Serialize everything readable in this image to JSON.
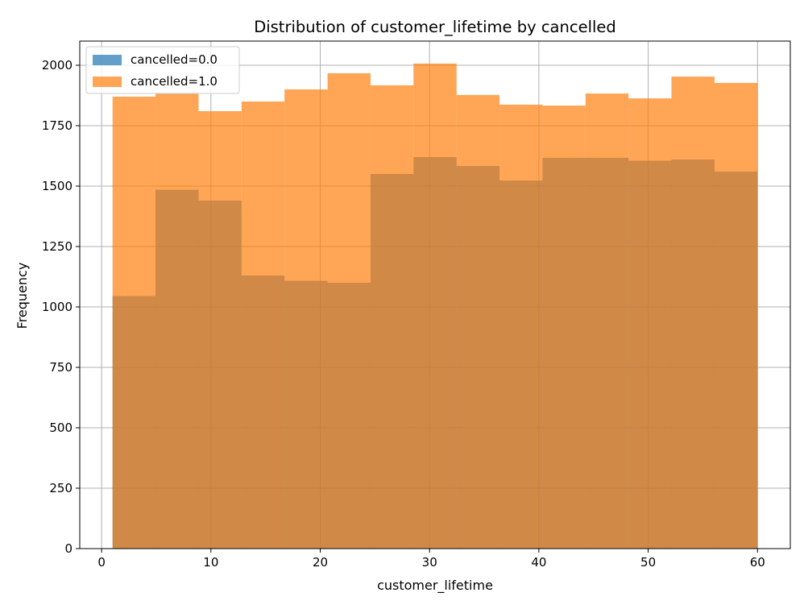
{
  "chart_data": {
    "type": "bar",
    "title": "Distribution of customer_lifetime by cancelled",
    "xlabel": "customer_lifetime",
    "ylabel": "Frequency",
    "xlim": [
      -2,
      63
    ],
    "ylim": [
      0,
      2100
    ],
    "xticks": [
      0,
      10,
      20,
      30,
      40,
      50,
      60
    ],
    "yticks": [
      0,
      250,
      500,
      750,
      1000,
      1250,
      1500,
      1750,
      2000
    ],
    "grid": true,
    "legend_position": "top-left",
    "bin_edges": [
      1,
      4.93,
      8.87,
      12.8,
      16.73,
      20.67,
      24.6,
      28.53,
      32.47,
      36.4,
      40.33,
      44.27,
      48.2,
      52.13,
      56.07,
      60
    ],
    "series": [
      {
        "name": "cancelled=0.0",
        "color": "#1f77b4",
        "opacity": 0.7,
        "values": [
          1045,
          1485,
          1440,
          1130,
          1108,
          1100,
          1550,
          1620,
          1583,
          1523,
          1617,
          1617,
          1605,
          1610,
          1560
        ]
      },
      {
        "name": "cancelled=1.0",
        "color": "#ff7f0e",
        "opacity": 0.7,
        "values": [
          1870,
          1883,
          1810,
          1850,
          1900,
          1967,
          1917,
          2007,
          1877,
          1837,
          1833,
          1883,
          1863,
          1953,
          1927
        ]
      }
    ]
  }
}
